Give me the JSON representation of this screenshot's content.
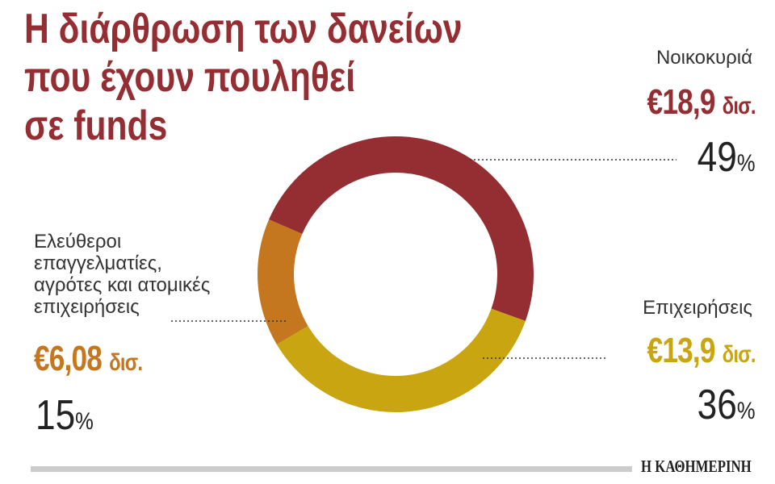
{
  "title_lines": [
    "Η διάρθρωση των δανείων",
    "που έχουν πουληθεί",
    "σε funds"
  ],
  "chart_data": {
    "type": "pie",
    "donut": true,
    "title": "Η διάρθρωση των δανείων που έχουν πουληθεί σε funds",
    "unit": "δισ. €",
    "slices": [
      {
        "label": "Νοικοκυριά",
        "value": 18.9,
        "value_label": "€18,9",
        "unit_label": "δισ.",
        "percent": 49,
        "percent_label": "49",
        "color": "#952e33"
      },
      {
        "label": "Επιχειρήσεις",
        "value": 13.9,
        "value_label": "€13,9",
        "unit_label": "δισ.",
        "percent": 36,
        "percent_label": "36",
        "color": "#c9a511"
      },
      {
        "label_lines": [
          "Ελεύθεροι",
          "επαγγελματίες,",
          "αγρότες και ατομικές",
          "επιχειρήσεις"
        ],
        "value": 6.08,
        "value_label": "€6,08",
        "unit_label": "δισ.",
        "percent": 15,
        "percent_label": "15",
        "color": "#c4771e"
      }
    ],
    "percent_sign": "%"
  },
  "footer": {
    "logo": "Η ΚΑΘΗΜΕΡΙΝΗ"
  }
}
